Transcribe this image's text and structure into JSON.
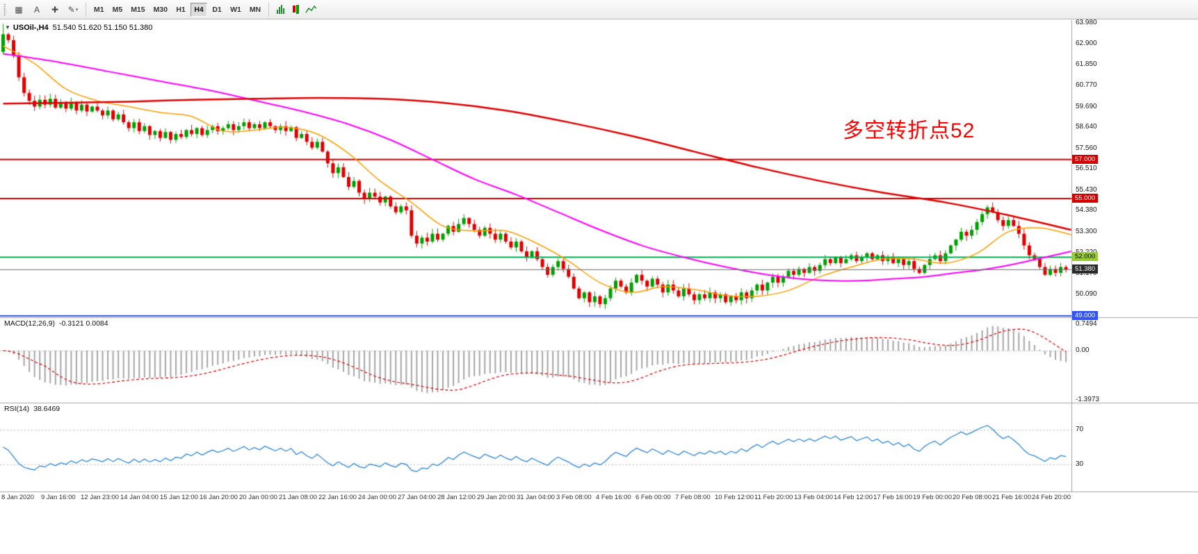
{
  "window": {
    "toolbar": {
      "tools": [
        {
          "name": "chart-window-tool",
          "glyph": "▦"
        },
        {
          "name": "text-label-tool",
          "glyph": "A"
        },
        {
          "name": "crosshair-tool",
          "glyph": "✚"
        },
        {
          "name": "drawing-tools",
          "glyph": "✎",
          "dropdown": true
        }
      ],
      "timeframes": [
        "M1",
        "M5",
        "M15",
        "M30",
        "H1",
        "H4",
        "D1",
        "W1",
        "MN"
      ],
      "active_timeframe": "H4",
      "right_icons": [
        {
          "name": "bars-chart-icon",
          "kind": "bars"
        },
        {
          "name": "candlestick-chart-icon",
          "kind": "candles"
        },
        {
          "name": "line-chart-icon",
          "kind": "line"
        }
      ]
    }
  },
  "chart": {
    "title": {
      "collapse_glyph": "▼",
      "symbol_tf": "USOil-,H4",
      "ohlc": "51.540 51.620 51.150 51.380"
    },
    "annotation": {
      "text": "多空转折点52",
      "color": "#ff0000"
    },
    "price_axis_labels": [
      "63.980",
      "62.900",
      "61.850",
      "60.770",
      "59.690",
      "58.640",
      "57.560",
      "56.510",
      "55.430",
      "54.380",
      "53.300",
      "52.220",
      "51.170",
      "50.090",
      "49.000"
    ],
    "price_tags": [
      {
        "name": "resistance-57-tag",
        "label": "57.000",
        "price": 57.0,
        "bg": "#d40000",
        "fg": "#ffffff"
      },
      {
        "name": "resistance-55-tag",
        "label": "55.000",
        "price": 55.0,
        "bg": "#d40000",
        "fg": "#ffffff"
      },
      {
        "name": "support-52-tag",
        "label": "52.000",
        "price": 52.0,
        "bg": "#9acd32",
        "fg": "#000000"
      },
      {
        "name": "current-price-tag",
        "label": "51.380",
        "price": 51.38,
        "bg": "#2b2b2b",
        "fg": "#ffffff"
      },
      {
        "name": "support-49-tag",
        "label": "49.000",
        "price": 49.0,
        "bg": "#3355ee",
        "fg": "#ffffff"
      }
    ],
    "hlines": [
      {
        "price": 57.0,
        "color": "#d40000",
        "width": 2
      },
      {
        "price": 55.0,
        "color": "#d40000",
        "width": 2
      },
      {
        "price": 52.0,
        "color": "#00b050",
        "width": 2
      },
      {
        "price": 49.0,
        "color": "#3355ee",
        "width": 2
      }
    ],
    "current_price": {
      "value": 51.38,
      "line_color": "#6e6e6e"
    },
    "time_axis_labels": [
      "8 Jan 2020",
      "9 Jan 16:00",
      "12 Jan 23:00",
      "14 Jan 04:00",
      "15 Jan 12:00",
      "16 Jan 20:00",
      "20 Jan 00:00",
      "21 Jan 08:00",
      "22 Jan 16:00",
      "24 Jan 00:00",
      "27 Jan 04:00",
      "28 Jan 12:00",
      "29 Jan 20:00",
      "31 Jan 04:00",
      "3 Feb 08:00",
      "4 Feb 16:00",
      "6 Feb 00:00",
      "7 Feb 08:00",
      "10 Feb 12:00",
      "11 Feb 20:00",
      "13 Feb 04:00",
      "14 Feb 12:00",
      "17 Feb 16:00",
      "19 Feb 00:00",
      "20 Feb 08:00",
      "21 Feb 16:00",
      "24 Feb 20:00"
    ]
  },
  "chart_data": {
    "type": "candlestick",
    "symbol": "USOil-",
    "timeframe": "H4",
    "title": "USOil-,H4 51.540 51.620 51.150 51.380",
    "y_range": {
      "min": 49.0,
      "max": 63.98
    },
    "first_open": 62.5,
    "up_color": "#00a000",
    "down_color": "#e00000",
    "closes": [
      63.4,
      63.1,
      62.3,
      61.2,
      60.4,
      60.0,
      59.7,
      60.05,
      59.8,
      60.1,
      59.65,
      59.9,
      59.6,
      59.9,
      59.5,
      59.8,
      59.45,
      59.7,
      59.5,
      59.25,
      59.5,
      59.05,
      59.3,
      58.9,
      58.6,
      58.9,
      58.45,
      58.7,
      58.25,
      58.45,
      58.1,
      58.4,
      58.0,
      58.3,
      58.15,
      58.5,
      58.3,
      58.6,
      58.25,
      58.5,
      58.7,
      58.45,
      58.6,
      58.8,
      58.5,
      58.7,
      58.9,
      58.6,
      58.8,
      58.6,
      58.9,
      58.7,
      58.5,
      58.7,
      58.45,
      58.65,
      58.1,
      58.3,
      57.9,
      57.6,
      57.9,
      57.4,
      56.8,
      56.3,
      56.6,
      56.1,
      55.6,
      55.9,
      55.3,
      55.0,
      55.3,
      55.1,
      54.8,
      55.1,
      54.6,
      54.3,
      54.6,
      54.4,
      53.1,
      52.7,
      53.0,
      52.8,
      53.2,
      52.9,
      53.2,
      53.6,
      53.3,
      53.7,
      54.0,
      53.7,
      53.4,
      53.1,
      53.5,
      53.2,
      52.9,
      53.2,
      52.8,
      52.5,
      52.8,
      52.3,
      52.0,
      52.3,
      51.9,
      51.5,
      51.1,
      51.5,
      51.8,
      51.4,
      51.0,
      50.4,
      49.9,
      50.2,
      49.7,
      50.0,
      49.6,
      49.9,
      50.4,
      50.8,
      50.5,
      50.2,
      50.7,
      51.1,
      50.8,
      50.5,
      50.9,
      50.6,
      50.2,
      50.6,
      50.3,
      50.0,
      50.4,
      50.1,
      49.8,
      50.1,
      49.9,
      50.2,
      49.9,
      50.1,
      49.7,
      50.0,
      49.8,
      50.2,
      49.9,
      50.3,
      50.6,
      50.3,
      50.7,
      51.0,
      50.7,
      51.0,
      51.3,
      51.1,
      51.4,
      51.2,
      51.5,
      51.3,
      51.6,
      51.9,
      51.7,
      52.0,
      51.7,
      51.9,
      52.1,
      51.8,
      52.0,
      52.2,
      51.9,
      52.1,
      51.8,
      52.0,
      51.7,
      51.9,
      51.6,
      51.8,
      51.4,
      51.2,
      51.6,
      51.9,
      52.1,
      51.8,
      52.2,
      52.6,
      52.9,
      53.3,
      53.1,
      53.4,
      53.8,
      54.2,
      54.55,
      54.3,
      53.9,
      53.6,
      53.9,
      53.6,
      53.2,
      52.6,
      52.1,
      51.9,
      51.5,
      51.1,
      51.4,
      51.2,
      51.5,
      51.38
    ],
    "moving_averages": [
      {
        "name": "ma-fast",
        "color": "#ff9d00",
        "width": 1.5,
        "points": [
          [
            0,
            62.8
          ],
          [
            6,
            61.9
          ],
          [
            12,
            60.6
          ],
          [
            18,
            60.0
          ],
          [
            24,
            59.7
          ],
          [
            30,
            59.4
          ],
          [
            36,
            59.2
          ],
          [
            42,
            58.45
          ],
          [
            48,
            58.5
          ],
          [
            54,
            58.65
          ],
          [
            60,
            58.3
          ],
          [
            66,
            57.3
          ],
          [
            72,
            55.9
          ],
          [
            78,
            54.8
          ],
          [
            84,
            53.6
          ],
          [
            90,
            53.35
          ],
          [
            96,
            53.35
          ],
          [
            102,
            52.7
          ],
          [
            108,
            51.8
          ],
          [
            114,
            50.7
          ],
          [
            120,
            50.2
          ],
          [
            126,
            50.5
          ],
          [
            132,
            50.35
          ],
          [
            138,
            50.05
          ],
          [
            144,
            50.0
          ],
          [
            150,
            50.3
          ],
          [
            156,
            51.0
          ],
          [
            162,
            51.5
          ],
          [
            168,
            51.9
          ],
          [
            174,
            51.9
          ],
          [
            180,
            51.7
          ],
          [
            186,
            52.2
          ],
          [
            192,
            53.3
          ],
          [
            198,
            53.5
          ],
          [
            204,
            53.15
          ]
        ]
      },
      {
        "name": "ma-mid",
        "color": "#ff00ff",
        "width": 2,
        "points": [
          [
            0,
            62.4
          ],
          [
            10,
            62.0
          ],
          [
            20,
            61.5
          ],
          [
            30,
            61.0
          ],
          [
            40,
            60.5
          ],
          [
            50,
            59.9
          ],
          [
            58,
            59.4
          ],
          [
            66,
            58.8
          ],
          [
            74,
            58.0
          ],
          [
            82,
            57.0
          ],
          [
            90,
            56.0
          ],
          [
            98,
            55.2
          ],
          [
            106,
            54.3
          ],
          [
            114,
            53.4
          ],
          [
            122,
            52.6
          ],
          [
            130,
            52.0
          ],
          [
            138,
            51.5
          ],
          [
            146,
            51.1
          ],
          [
            152,
            50.9
          ],
          [
            158,
            50.8
          ],
          [
            164,
            50.8
          ],
          [
            170,
            50.9
          ],
          [
            176,
            51.0
          ],
          [
            182,
            51.2
          ],
          [
            188,
            51.4
          ],
          [
            194,
            51.7
          ],
          [
            204,
            52.3
          ]
        ]
      },
      {
        "name": "ma-slow",
        "color": "#e00000",
        "width": 2.5,
        "points": [
          [
            0,
            59.85
          ],
          [
            12,
            59.9
          ],
          [
            24,
            59.95
          ],
          [
            36,
            60.05
          ],
          [
            48,
            60.1
          ],
          [
            60,
            60.15
          ],
          [
            72,
            60.1
          ],
          [
            84,
            59.9
          ],
          [
            96,
            59.5
          ],
          [
            108,
            58.9
          ],
          [
            120,
            58.2
          ],
          [
            132,
            57.4
          ],
          [
            144,
            56.6
          ],
          [
            156,
            55.9
          ],
          [
            168,
            55.3
          ],
          [
            180,
            54.8
          ],
          [
            192,
            54.15
          ],
          [
            204,
            53.4
          ]
        ]
      }
    ],
    "indicators": {
      "macd": {
        "label": "MACD(12,26,9)",
        "values_text": "-0.3121 0.0084",
        "fast": 12,
        "slow": 26,
        "signal": 9,
        "hist_color": "#a6a6a6",
        "signal_color": "#d40000",
        "axis_labels": [
          {
            "text": "0.7494",
            "value": 0.7494
          },
          {
            "text": "0.00",
            "value": 0
          },
          {
            "text": "-1.3973",
            "value": -1.3973
          }
        ]
      },
      "rsi": {
        "label": "RSI(14)",
        "value_text": "38.6469",
        "period": 14,
        "color": "#1e7fd6",
        "level_labels": [
          {
            "text": "70",
            "value": 70
          },
          {
            "text": "30",
            "value": 30
          }
        ]
      }
    }
  }
}
